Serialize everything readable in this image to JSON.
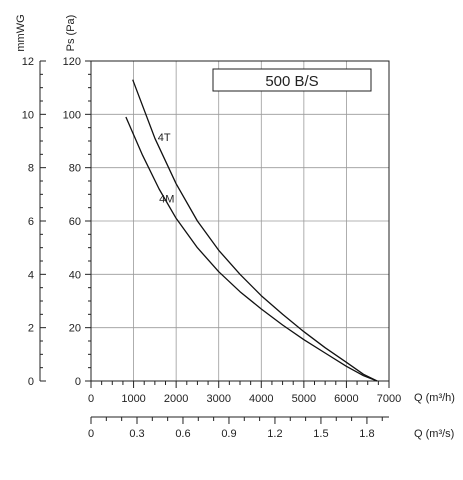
{
  "chart_data": {
    "type": "line",
    "title": "500 B/S",
    "xlabel": "Q (m³/h)",
    "x2label": "Q (m³/s)",
    "ylabel": "Ps (Pa)",
    "y2label": "mmWG",
    "xlim": [
      0,
      7000
    ],
    "ylim": [
      0,
      120
    ],
    "x_ticks": [
      "0",
      "1000",
      "2000",
      "3000",
      "4000",
      "5000",
      "6000",
      "7000"
    ],
    "x2_ticks": [
      "0",
      "0.3",
      "0.6",
      "0.9",
      "1.2",
      "1.5",
      "1.8"
    ],
    "y_ticks": [
      "0",
      "20",
      "40",
      "60",
      "80",
      "100",
      "120"
    ],
    "y2_ticks": [
      "0",
      "2",
      "4",
      "6",
      "8",
      "10",
      "12"
    ],
    "grid": true,
    "series": [
      {
        "name": "4T",
        "x": [
          980,
          1500,
          2000,
          2500,
          3000,
          3500,
          4000,
          4500,
          5000,
          5500,
          6000,
          6400,
          6720
        ],
        "y": [
          113,
          91,
          74,
          60,
          49,
          40,
          32,
          25,
          18.5,
          12.5,
          7,
          2.5,
          0
        ]
      },
      {
        "name": "4M",
        "x": [
          820,
          1200,
          1600,
          2000,
          2500,
          3000,
          3500,
          4000,
          4500,
          5000,
          5500,
          6000,
          6400,
          6720
        ],
        "y": [
          99,
          85,
          72,
          61,
          50,
          41,
          33.5,
          27,
          21,
          15.5,
          10.5,
          5.5,
          2,
          0
        ]
      }
    ]
  }
}
